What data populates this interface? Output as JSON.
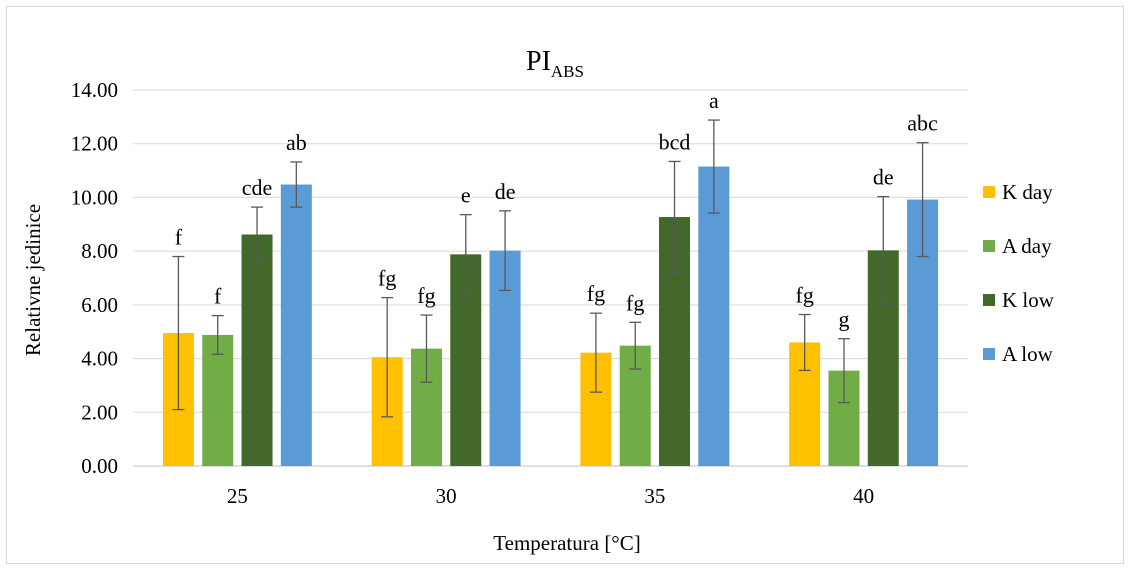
{
  "chart_data": {
    "type": "bar",
    "title": "PI",
    "title_subscript": "ABS",
    "xlabel": "Temperatura [°C]",
    "ylabel": "Relativne jedinice",
    "ylim": [
      0,
      14
    ],
    "yticks": [
      "0.00",
      "2.00",
      "4.00",
      "6.00",
      "8.00",
      "10.00",
      "12.00",
      "14.00"
    ],
    "categories": [
      "25",
      "30",
      "35",
      "40"
    ],
    "grid": true,
    "legend_position": "right",
    "series": [
      {
        "name": "K day",
        "color": "#FFC000",
        "values": [
          4.95,
          4.05,
          4.22,
          4.6
        ],
        "errors": [
          2.85,
          2.22,
          1.47,
          1.04
        ],
        "labels": [
          "f",
          "fg",
          "fg",
          "fg"
        ]
      },
      {
        "name": "A day",
        "color": "#70AD47",
        "values": [
          4.88,
          4.37,
          4.48,
          3.55
        ],
        "errors": [
          0.72,
          1.25,
          0.87,
          1.19
        ],
        "labels": [
          "f",
          "fg",
          "fg",
          "g"
        ]
      },
      {
        "name": "K low",
        "color": "#43682B",
        "values": [
          8.62,
          7.88,
          9.27,
          8.03
        ],
        "errors": [
          1.02,
          1.48,
          2.07,
          2.0
        ],
        "labels": [
          "cde",
          "e",
          "bcd",
          "de"
        ]
      },
      {
        "name": "A low",
        "color": "#5B9BD5",
        "values": [
          10.48,
          8.02,
          11.15,
          9.92
        ],
        "errors": [
          0.84,
          1.48,
          1.73,
          2.12
        ],
        "labels": [
          "ab",
          "de",
          "a",
          "abc"
        ]
      }
    ]
  }
}
